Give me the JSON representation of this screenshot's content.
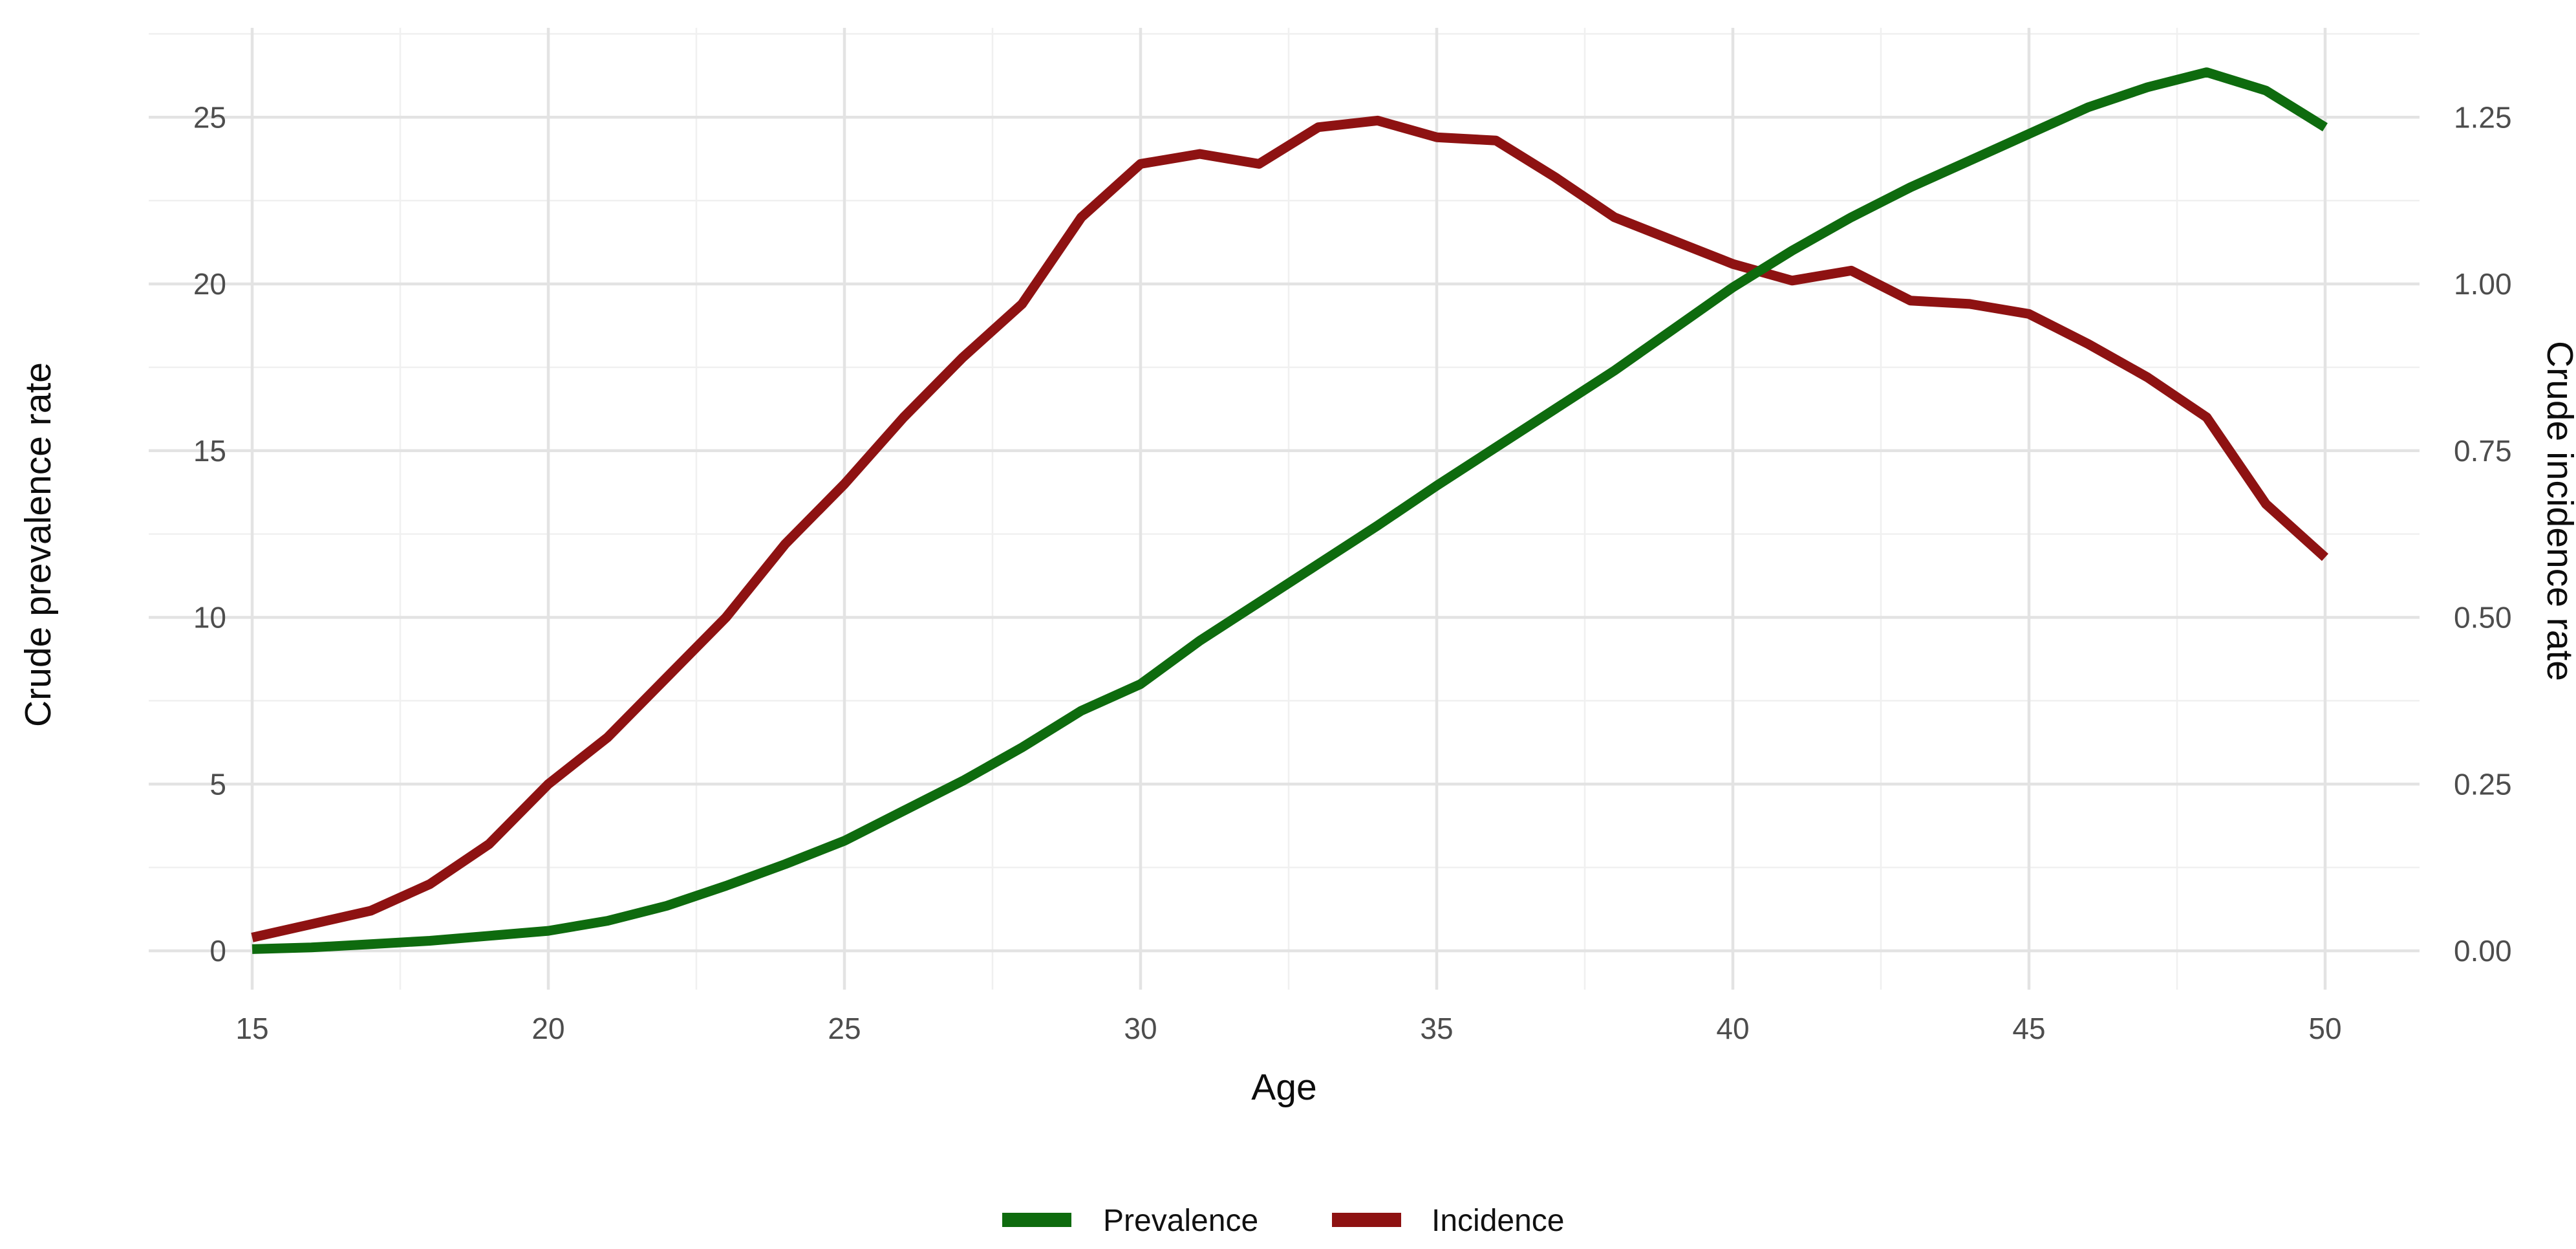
{
  "chart_data": {
    "type": "line",
    "title": "",
    "xlabel": "Age",
    "ylabel_left": "Crude prevalence rate",
    "ylabel_right": "Crude incidence rate",
    "x": [
      15,
      16,
      17,
      18,
      19,
      20,
      21,
      22,
      23,
      24,
      25,
      26,
      27,
      28,
      29,
      30,
      31,
      32,
      33,
      34,
      35,
      36,
      37,
      38,
      39,
      40,
      41,
      42,
      43,
      44,
      45,
      46,
      47,
      48,
      49,
      50
    ],
    "x_ticks": [
      15,
      20,
      25,
      30,
      35,
      40,
      45,
      50
    ],
    "x_minor_ticks": [
      17.5,
      22.5,
      27.5,
      32.5,
      37.5,
      42.5,
      47.5
    ],
    "y_left_ticks": [
      "0",
      "5",
      "10",
      "15",
      "20",
      "25"
    ],
    "y_left_tick_values": [
      0,
      5,
      10,
      15,
      20,
      25
    ],
    "y_left_minor_values": [
      2.5,
      7.5,
      12.5,
      17.5,
      22.5,
      27.5
    ],
    "y_right_ticks": [
      "0.00",
      "0.25",
      "0.50",
      "0.75",
      "1.00",
      "1.25"
    ],
    "y_right_tick_values": [
      0.0,
      0.25,
      0.5,
      0.75,
      1.0,
      1.25
    ],
    "y_left_range": [
      0,
      27.5
    ],
    "y_right_range": [
      0,
      1.375
    ],
    "x_range": [
      15,
      50
    ],
    "right_axis_factor": 20,
    "grid": true,
    "legend_position": "bottom",
    "series": [
      {
        "name": "Incidence",
        "axis": "right",
        "color": "#8e1212",
        "values": [
          0.02,
          0.04,
          0.06,
          0.1,
          0.16,
          0.25,
          0.32,
          0.41,
          0.5,
          0.61,
          0.7,
          0.8,
          0.89,
          0.97,
          1.1,
          1.18,
          1.195,
          1.18,
          1.235,
          1.245,
          1.22,
          1.215,
          1.16,
          1.1,
          1.065,
          1.03,
          1.005,
          1.02,
          0.975,
          0.97,
          0.955,
          0.91,
          0.86,
          0.8,
          0.67,
          0.59
        ]
      },
      {
        "name": "Prevalence",
        "axis": "left",
        "color": "#0e6b0e",
        "values": [
          0.05,
          0.1,
          0.2,
          0.3,
          0.45,
          0.6,
          0.9,
          1.35,
          1.95,
          2.6,
          3.3,
          4.2,
          5.1,
          6.1,
          7.2,
          8.0,
          9.3,
          10.45,
          11.6,
          12.75,
          13.95,
          15.1,
          16.25,
          17.4,
          18.65,
          19.9,
          21.0,
          22.0,
          22.9,
          23.7,
          24.5,
          25.3,
          25.9,
          26.35,
          25.8,
          24.7
        ]
      }
    ]
  },
  "legend": {
    "items": [
      {
        "label": "Prevalence",
        "color": "#0e6b0e"
      },
      {
        "label": "Incidence",
        "color": "#8e1212"
      }
    ]
  },
  "axis_titles": {
    "x": "Age",
    "left": "Crude prevalence rate",
    "right": "Crude incidence rate"
  },
  "colors": {
    "prevalence": "#0e6b0e",
    "incidence": "#8e1212",
    "grid_major": "#e3e3e3",
    "grid_minor": "#f0f0f0",
    "tick_text": "#4d4d4d",
    "title_text": "#0d0d0d",
    "background": "#ffffff"
  }
}
